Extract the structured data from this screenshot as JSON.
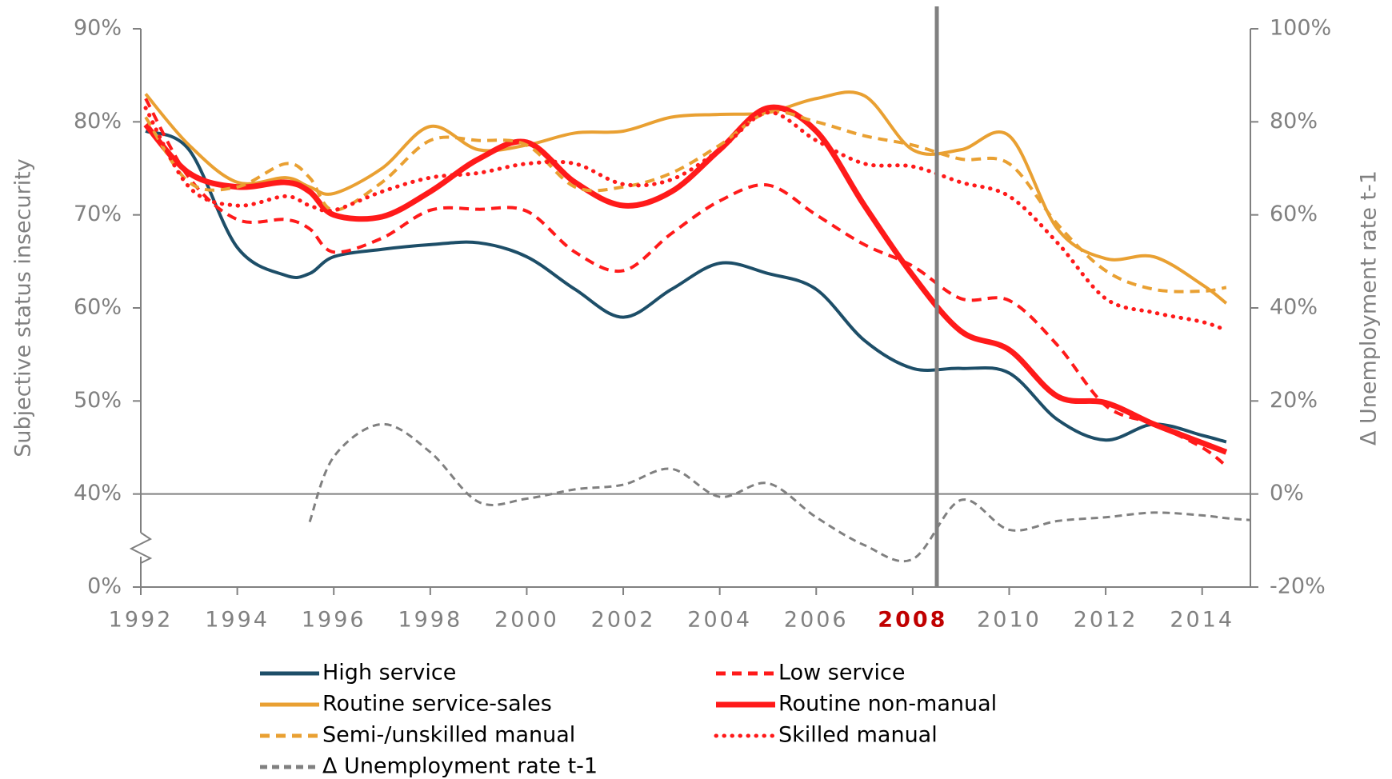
{
  "chart_data": {
    "type": "line",
    "ylabel": "Subjective status insecurity",
    "y2label": "Δ Unemployment rate t-1",
    "x": [
      1992.1,
      1993,
      1994,
      1995,
      1995.5,
      1996,
      1997,
      1998,
      1999,
      2000,
      2001,
      2002,
      2003,
      2004,
      2005,
      2006,
      2007,
      2008,
      2009,
      2010,
      2011,
      2012,
      2013,
      2014,
      2014.5,
      2015
    ],
    "xlim": [
      1992,
      2015
    ],
    "xticks": [
      1992,
      1994,
      1996,
      1998,
      2000,
      2002,
      2004,
      2006,
      2008,
      2010,
      2012,
      2014
    ],
    "highlight_xtick": 2008,
    "vline": 2008.5,
    "ylim": [
      30,
      90
    ],
    "axis_break": true,
    "yticks": [
      {
        "value": 0,
        "label": "0%"
      },
      {
        "value": 40,
        "label": "40%"
      },
      {
        "value": 50,
        "label": "50%"
      },
      {
        "value": 60,
        "label": "60%"
      },
      {
        "value": 70,
        "label": "70%"
      },
      {
        "value": 80,
        "label": "80%"
      },
      {
        "value": 90,
        "label": "90%"
      }
    ],
    "y2lim": [
      -20,
      100
    ],
    "y2ticks": [
      {
        "value": -20,
        "label": "-20%"
      },
      {
        "value": 0,
        "label": "0%"
      },
      {
        "value": 20,
        "label": "20%"
      },
      {
        "value": 40,
        "label": "40%"
      },
      {
        "value": 60,
        "label": "60%"
      },
      {
        "value": 80,
        "label": "80%"
      },
      {
        "value": 100,
        "label": "100%"
      }
    ],
    "series": [
      {
        "name": "High service",
        "color": "#1d4e68",
        "dash": "solid",
        "width": 4,
        "values": [
          79,
          77,
          66.5,
          63.5,
          63.7,
          65.5,
          66.3,
          66.8,
          67,
          65.5,
          62,
          59,
          62,
          64.8,
          63.7,
          62,
          56.5,
          53.5,
          53.5,
          53,
          48,
          45.8,
          47.5,
          46.3,
          45.6,
          null
        ]
      },
      {
        "name": "Low service",
        "color": "#ff1a1a",
        "dash": "dashed",
        "width": 4,
        "values": [
          82.5,
          74,
          69.5,
          69.5,
          68.5,
          66,
          67.5,
          70.5,
          70.6,
          70.4,
          66,
          64,
          68,
          71.5,
          73.2,
          70,
          66.8,
          64.5,
          61,
          60.8,
          56,
          49.5,
          47.5,
          45,
          43,
          null
        ]
      },
      {
        "name": "Routine service-sales",
        "color": "#e9a032",
        "dash": "solid",
        "width": 4,
        "values": [
          83,
          77.5,
          73.5,
          74,
          73,
          72.3,
          75,
          79.5,
          77,
          77.5,
          78.8,
          79,
          80.5,
          80.8,
          81,
          82.5,
          82.8,
          77,
          77,
          78.5,
          68.5,
          65.3,
          65.5,
          62.5,
          60.5,
          null
        ]
      },
      {
        "name": "Routine non-manual",
        "color": "#ff1a1a",
        "dash": "solid",
        "width": 7,
        "values": [
          79.7,
          74.5,
          73,
          73.5,
          72.5,
          70,
          69.8,
          72.5,
          76,
          77.8,
          73.5,
          71,
          72.5,
          77,
          81.5,
          79,
          71,
          63.5,
          57.5,
          55.5,
          50.5,
          49.8,
          47.5,
          45.5,
          44.5,
          null
        ]
      },
      {
        "name": "Semi-/unskilled manual",
        "color": "#e9a032",
        "dash": "dashed",
        "width": 4,
        "values": [
          80.5,
          73.5,
          73,
          75.5,
          74,
          70.5,
          73.5,
          78,
          78,
          77.5,
          73,
          73,
          74.5,
          77.5,
          81,
          80,
          78.5,
          77.5,
          76,
          75.5,
          69,
          64,
          62,
          61.8,
          62.2,
          null
        ]
      },
      {
        "name": "Skilled manual",
        "color": "#ff1a1a",
        "dash": "dotted",
        "width": 5,
        "values": [
          81.5,
          73,
          71,
          72,
          71,
          70.5,
          72.5,
          74,
          74.5,
          75.5,
          75.5,
          73.3,
          73.8,
          77,
          81,
          78,
          75.5,
          75.2,
          73.5,
          72,
          67,
          61,
          59.5,
          58.5,
          57.6,
          null
        ]
      },
      {
        "name": "Δ Unemployment rate t-1",
        "color": "#808080",
        "dash": "dashed",
        "width": 3,
        "axis": "y2",
        "values": [
          null,
          null,
          null,
          null,
          -6,
          8,
          15,
          9,
          -1.7,
          -1,
          1,
          2,
          5.4,
          -0.6,
          2.3,
          -5,
          -11,
          -14,
          -1.3,
          -7.7,
          -5.8,
          -5,
          -4,
          -4.6,
          -5.2,
          -5.6
        ]
      }
    ]
  }
}
